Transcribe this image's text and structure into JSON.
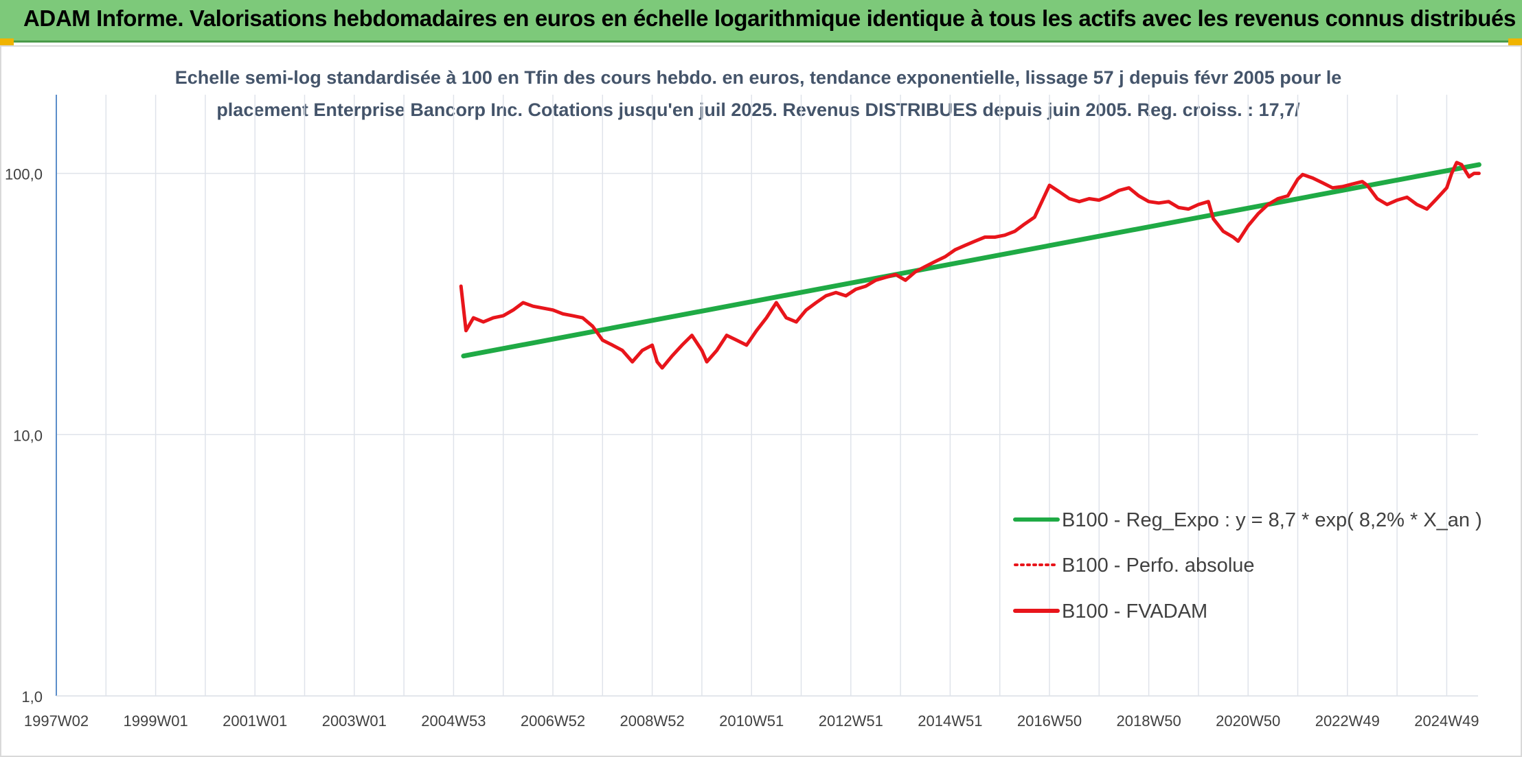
{
  "header": {
    "title": "ADAM Informe. Valorisations hebdomadaires en euros en échelle logarithmique identique à tous les actifs avec les revenus connus distribués",
    "background_color": "#7dc97a"
  },
  "chart_data": {
    "type": "line",
    "title_lines": [
      "Echelle semi-log standardisée à 100 en Tfin des cours hebdo. en euros, tendance exponentielle, lissage 57 j depuis févr 2005 pour le",
      "placement Enterprise Bancorp Inc. Cotations jusqu'en juil 2025. Revenus DISTRIBUES depuis juin 2005. Reg. croiss. : 17,7/"
    ],
    "y_scale": "log",
    "ylim": [
      1,
      200
    ],
    "y_ticks": [
      {
        "value": 1,
        "label": "1,0"
      },
      {
        "value": 10,
        "label": "10,0"
      },
      {
        "value": 100,
        "label": "100,0"
      }
    ],
    "xlim": [
      1997.0,
      2025.75
    ],
    "x_ticks": [
      {
        "value": 1997.0,
        "label": "1997W02"
      },
      {
        "value": 1999.0,
        "label": "1999W01"
      },
      {
        "value": 2001.0,
        "label": "2001W01"
      },
      {
        "value": 2003.0,
        "label": "2003W01"
      },
      {
        "value": 2005.0,
        "label": "2004W53"
      },
      {
        "value": 2007.0,
        "label": "2006W52"
      },
      {
        "value": 2009.0,
        "label": "2008W52"
      },
      {
        "value": 2011.0,
        "label": "2010W51"
      },
      {
        "value": 2013.0,
        "label": "2012W51"
      },
      {
        "value": 2015.0,
        "label": "2014W51"
      },
      {
        "value": 2017.0,
        "label": "2016W50"
      },
      {
        "value": 2019.0,
        "label": "2018W50"
      },
      {
        "value": 2021.0,
        "label": "2020W50"
      },
      {
        "value": 2023.0,
        "label": "2022W49"
      },
      {
        "value": 2025.0,
        "label": "2024W49"
      }
    ],
    "grid_x": true,
    "grid_y": true,
    "legend_position": "right",
    "series": [
      {
        "name": "B100 - Reg_Expo : y = 8,7 * exp( 8,2% *  X_an )",
        "style": "solid",
        "color": "#1faa45",
        "points": [
          [
            2005.2,
            20.0
          ],
          [
            2025.65,
            108.0
          ]
        ]
      },
      {
        "name": "B100 - Perfo. absolue",
        "style": "dotted",
        "color": "#e8151b",
        "points": []
      },
      {
        "name": "B100 - FVADAM",
        "style": "solid",
        "color": "#e8151b",
        "points": [
          [
            2005.15,
            37
          ],
          [
            2005.25,
            25
          ],
          [
            2005.4,
            28
          ],
          [
            2005.6,
            27
          ],
          [
            2005.8,
            28
          ],
          [
            2006.0,
            28.5
          ],
          [
            2006.2,
            30
          ],
          [
            2006.4,
            32
          ],
          [
            2006.6,
            31
          ],
          [
            2006.8,
            30.5
          ],
          [
            2007.0,
            30
          ],
          [
            2007.2,
            29
          ],
          [
            2007.4,
            28.5
          ],
          [
            2007.6,
            28
          ],
          [
            2007.8,
            26
          ],
          [
            2008.0,
            23
          ],
          [
            2008.2,
            22
          ],
          [
            2008.4,
            21
          ],
          [
            2008.6,
            19
          ],
          [
            2008.8,
            21
          ],
          [
            2009.0,
            22
          ],
          [
            2009.1,
            19
          ],
          [
            2009.2,
            18
          ],
          [
            2009.4,
            20
          ],
          [
            2009.6,
            22
          ],
          [
            2009.8,
            24
          ],
          [
            2010.0,
            21
          ],
          [
            2010.1,
            19
          ],
          [
            2010.3,
            21
          ],
          [
            2010.5,
            24
          ],
          [
            2010.7,
            23
          ],
          [
            2010.9,
            22
          ],
          [
            2011.1,
            25
          ],
          [
            2011.3,
            28
          ],
          [
            2011.5,
            32
          ],
          [
            2011.7,
            28
          ],
          [
            2011.9,
            27
          ],
          [
            2012.1,
            30
          ],
          [
            2012.3,
            32
          ],
          [
            2012.5,
            34
          ],
          [
            2012.7,
            35
          ],
          [
            2012.9,
            34
          ],
          [
            2013.1,
            36
          ],
          [
            2013.3,
            37
          ],
          [
            2013.5,
            39
          ],
          [
            2013.7,
            40
          ],
          [
            2013.9,
            41
          ],
          [
            2014.1,
            39
          ],
          [
            2014.3,
            42
          ],
          [
            2014.5,
            44
          ],
          [
            2014.7,
            46
          ],
          [
            2014.9,
            48
          ],
          [
            2015.1,
            51
          ],
          [
            2015.3,
            53
          ],
          [
            2015.5,
            55
          ],
          [
            2015.7,
            57
          ],
          [
            2015.9,
            57
          ],
          [
            2016.1,
            58
          ],
          [
            2016.3,
            60
          ],
          [
            2016.5,
            64
          ],
          [
            2016.7,
            68
          ],
          [
            2016.9,
            82
          ],
          [
            2017.0,
            90
          ],
          [
            2017.2,
            85
          ],
          [
            2017.4,
            80
          ],
          [
            2017.6,
            78
          ],
          [
            2017.8,
            80
          ],
          [
            2018.0,
            79
          ],
          [
            2018.2,
            82
          ],
          [
            2018.4,
            86
          ],
          [
            2018.6,
            88
          ],
          [
            2018.8,
            82
          ],
          [
            2019.0,
            78
          ],
          [
            2019.2,
            77
          ],
          [
            2019.4,
            78
          ],
          [
            2019.6,
            74
          ],
          [
            2019.8,
            73
          ],
          [
            2020.0,
            76
          ],
          [
            2020.2,
            78
          ],
          [
            2020.3,
            67
          ],
          [
            2020.5,
            60
          ],
          [
            2020.7,
            57
          ],
          [
            2020.8,
            55
          ],
          [
            2021.0,
            63
          ],
          [
            2021.2,
            70
          ],
          [
            2021.4,
            76
          ],
          [
            2021.6,
            80
          ],
          [
            2021.8,
            82
          ],
          [
            2022.0,
            95
          ],
          [
            2022.1,
            99
          ],
          [
            2022.3,
            96
          ],
          [
            2022.5,
            92
          ],
          [
            2022.7,
            88
          ],
          [
            2022.9,
            89
          ],
          [
            2023.1,
            91
          ],
          [
            2023.3,
            93
          ],
          [
            2023.4,
            90
          ],
          [
            2023.6,
            80
          ],
          [
            2023.8,
            76
          ],
          [
            2024.0,
            79
          ],
          [
            2024.2,
            81
          ],
          [
            2024.4,
            76
          ],
          [
            2024.6,
            73
          ],
          [
            2024.8,
            80
          ],
          [
            2025.0,
            88
          ],
          [
            2025.1,
            100
          ],
          [
            2025.2,
            110
          ],
          [
            2025.3,
            108
          ],
          [
            2025.45,
            97
          ],
          [
            2025.55,
            100
          ],
          [
            2025.65,
            100
          ]
        ]
      }
    ]
  }
}
